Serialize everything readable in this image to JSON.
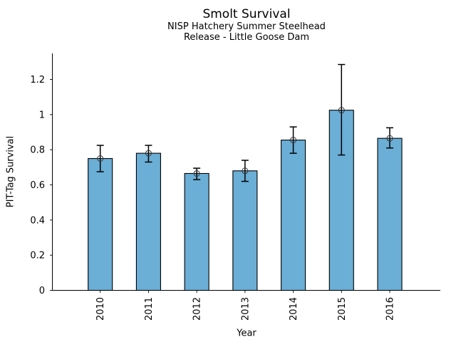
{
  "chart_data": {
    "type": "bar",
    "title": "Smolt Survival",
    "subtitle_line1": "NISP Hatchery Summer Steelhead",
    "subtitle_line2": "Release - Little Goose Dam",
    "xlabel": "Year",
    "ylabel": "PIT-Tag Survival",
    "categories": [
      "2010",
      "2011",
      "2012",
      "2013",
      "2014",
      "2015",
      "2016"
    ],
    "values": [
      0.75,
      0.78,
      0.665,
      0.68,
      0.855,
      1.025,
      0.865
    ],
    "error_plus": [
      0.075,
      0.045,
      0.03,
      0.06,
      0.075,
      0.26,
      0.06
    ],
    "error_minus": [
      0.075,
      0.05,
      0.035,
      0.06,
      0.075,
      0.255,
      0.055
    ],
    "yticks": [
      0,
      0.2,
      0.4,
      0.6,
      0.8,
      1,
      1.2
    ],
    "ytick_labels": [
      "0",
      "0.2",
      "0.4",
      "0.6",
      "0.8",
      "1",
      "1.2"
    ],
    "ylim": [
      0,
      1.348
    ],
    "grid": false,
    "legend": null,
    "bar_color": "#6baed6",
    "bar_edge_color": "#000000",
    "error_color": "#000000",
    "axis_color": "#000000",
    "marker": "open-circle"
  }
}
